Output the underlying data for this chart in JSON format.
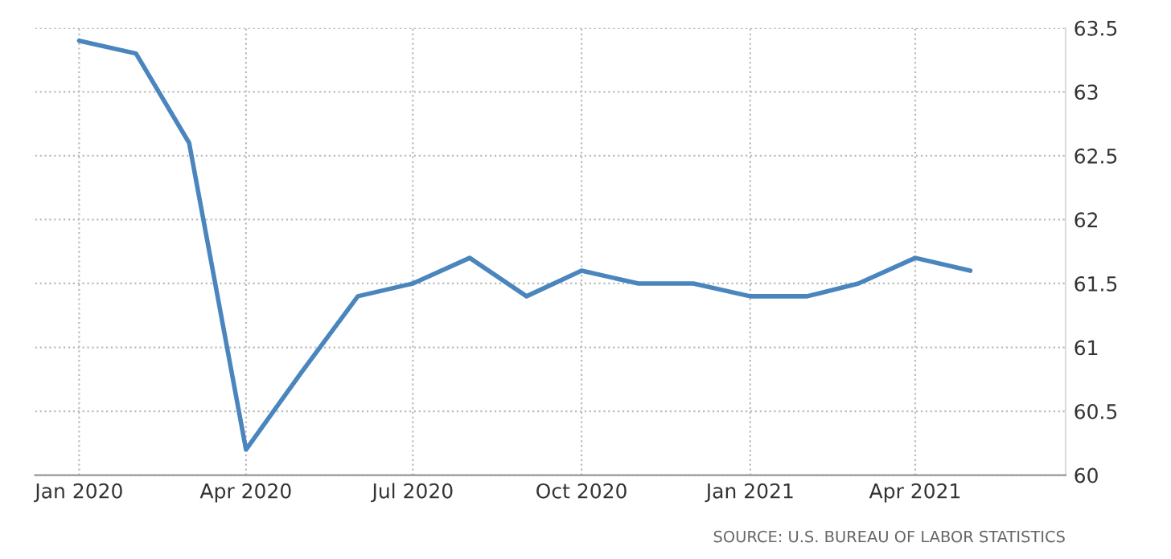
{
  "chart_data": {
    "type": "line",
    "x": [
      "2020-01",
      "2020-02",
      "2020-03",
      "2020-04",
      "2020-05",
      "2020-06",
      "2020-07",
      "2020-08",
      "2020-09",
      "2020-10",
      "2020-11",
      "2020-12",
      "2021-01",
      "2021-02",
      "2021-03",
      "2021-04",
      "2021-05"
    ],
    "series": [
      {
        "color": "#4a86bd",
        "values": [
          63.4,
          63.3,
          62.6,
          60.2,
          60.8,
          61.4,
          61.5,
          61.7,
          61.4,
          61.6,
          61.5,
          61.5,
          61.4,
          61.4,
          61.5,
          61.7,
          61.6
        ]
      }
    ],
    "xlim": [
      "2019-12-08",
      "2021-06-22"
    ],
    "xticks": [
      {
        "value": "2020-01",
        "label": "Jan 2020"
      },
      {
        "value": "2020-04",
        "label": "Apr 2020"
      },
      {
        "value": "2020-07",
        "label": "Jul 2020"
      },
      {
        "value": "2020-10",
        "label": "Oct 2020"
      },
      {
        "value": "2021-01",
        "label": "Jan 2021"
      },
      {
        "value": "2021-04",
        "label": "Apr 2021"
      }
    ],
    "ylim": [
      60,
      63.5
    ],
    "yticks": [
      60,
      60.5,
      61,
      61.5,
      62,
      62.5,
      63,
      63.5
    ],
    "grid": true,
    "marker": "none",
    "line_style": "solid",
    "legend": false,
    "annotations": [
      "SOURCE: U.S. BUREAU OF LABOR STATISTICS"
    ]
  }
}
